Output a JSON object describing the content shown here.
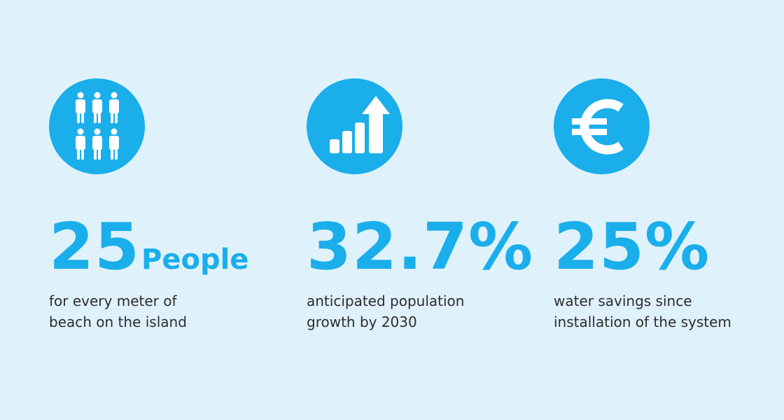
{
  "colors": {
    "background": "#dff1fb",
    "accent": "#1aaeea",
    "text": "#2d2d2d"
  },
  "stats": [
    {
      "icon": "people-icon",
      "value": "25",
      "unit": "People",
      "description_line1": "for every meter of",
      "description_line2": "beach on the island"
    },
    {
      "icon": "growth-chart-icon",
      "value": "32.7%",
      "unit": "",
      "description_line1": "anticipated population",
      "description_line2": "growth by 2030"
    },
    {
      "icon": "euro-icon",
      "value": "25%",
      "unit": "",
      "description_line1": "water savings since",
      "description_line2": "installation of the system"
    }
  ]
}
